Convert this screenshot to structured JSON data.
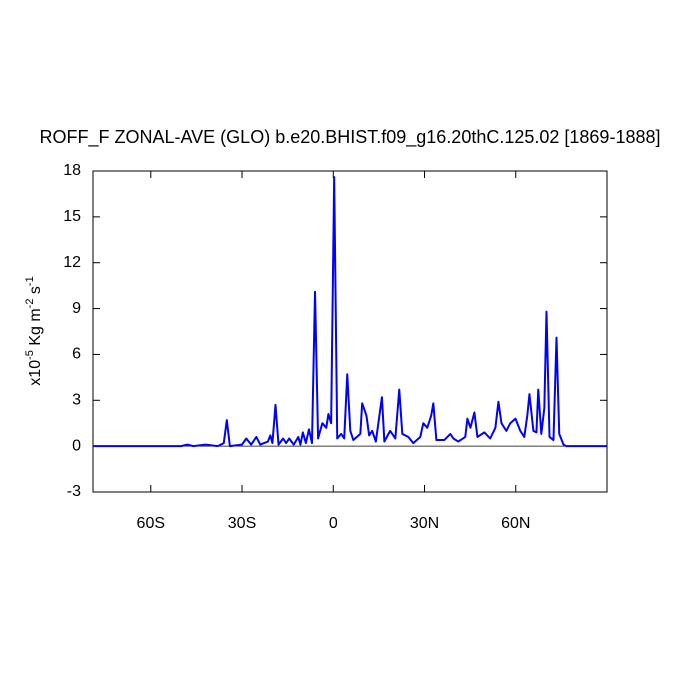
{
  "chart_data": {
    "type": "line",
    "title": "ROFF_F ZONAL-AVE (GLO) b.e20.BHIST.f09_g16.20thC.125.02 [1869-1888]",
    "ylabel": [
      "x10",
      "-5",
      " Kg m",
      "-2",
      " s",
      "-1"
    ],
    "xlim": [
      -79,
      90
    ],
    "ylim": [
      -3,
      18
    ],
    "xticks": [
      {
        "value": -60,
        "label": "60S"
      },
      {
        "value": -30,
        "label": "30S"
      },
      0,
      {
        "value": 30,
        "label": "30N"
      },
      {
        "value": 60,
        "label": "60N"
      }
    ],
    "yticks": [
      -3,
      0,
      3,
      6,
      9,
      12,
      15,
      18
    ],
    "series": [
      {
        "color": "#0000ff",
        "x": [
          -79,
          -50,
          -48,
          -46,
          -42,
          -38,
          -36,
          -35,
          -34,
          -30,
          -28.6,
          -27,
          -25.3,
          -24,
          -21.5,
          -20.7,
          -20,
          -19,
          -18,
          -16.5,
          -15.5,
          -14.5,
          -13,
          -11.5,
          -10.8,
          -10,
          -9,
          -8,
          -7,
          -6,
          -5,
          -3.6,
          -2.3,
          -1.6,
          -0.7,
          0.3,
          1.3,
          2.6,
          3.6,
          4.6,
          5.6,
          6.6,
          8.9,
          9.5,
          10.9,
          11.8,
          12.8,
          14,
          16,
          16.8,
          18.7,
          20.4,
          21.7,
          22.7,
          24.7,
          26.3,
          28.6,
          29.6,
          30.9,
          32.2,
          32.9,
          33.9,
          36.5,
          38.5,
          39.5,
          41.1,
          43.4,
          44.1,
          45.1,
          46.4,
          47.4,
          49.7,
          51.6,
          53.3,
          54.3,
          55.3,
          56.9,
          58.2,
          59.9,
          61.5,
          62.8,
          63.8,
          64.5,
          65.8,
          66.8,
          67.4,
          68.4,
          69.4,
          70.1,
          71.1,
          72.4,
          73.4,
          74.3,
          75.7,
          76.6,
          90
        ],
        "values": [
          0,
          0,
          0.1,
          0,
          0.1,
          0,
          0.2,
          1.7,
          0,
          0.1,
          0.5,
          0.1,
          0.6,
          0.1,
          0.3,
          0.7,
          0.2,
          2.7,
          0.1,
          0.5,
          0.2,
          0.5,
          0.1,
          0.6,
          0.1,
          0.9,
          0.2,
          1.1,
          0.2,
          10.1,
          0.5,
          1.5,
          1.2,
          2.1,
          1.5,
          17.6,
          0.5,
          0.8,
          0.5,
          4.7,
          1.0,
          0.4,
          0.8,
          2.8,
          2.0,
          0.7,
          1.0,
          0.3,
          3.2,
          0.3,
          1.0,
          0.5,
          3.7,
          0.8,
          0.6,
          0.2,
          0.6,
          1.5,
          1.2,
          2.0,
          2.8,
          0.4,
          0.4,
          0.8,
          0.5,
          0.3,
          0.6,
          1.8,
          1.2,
          2.2,
          0.6,
          0.9,
          0.5,
          1.2,
          2.9,
          1.5,
          1.0,
          1.5,
          1.8,
          1.0,
          0.6,
          2.0,
          3.4,
          1.0,
          0.9,
          3.7,
          0.8,
          2.5,
          8.8,
          0.6,
          0.4,
          7.1,
          0.8,
          0.1,
          0,
          0
        ]
      }
    ]
  }
}
